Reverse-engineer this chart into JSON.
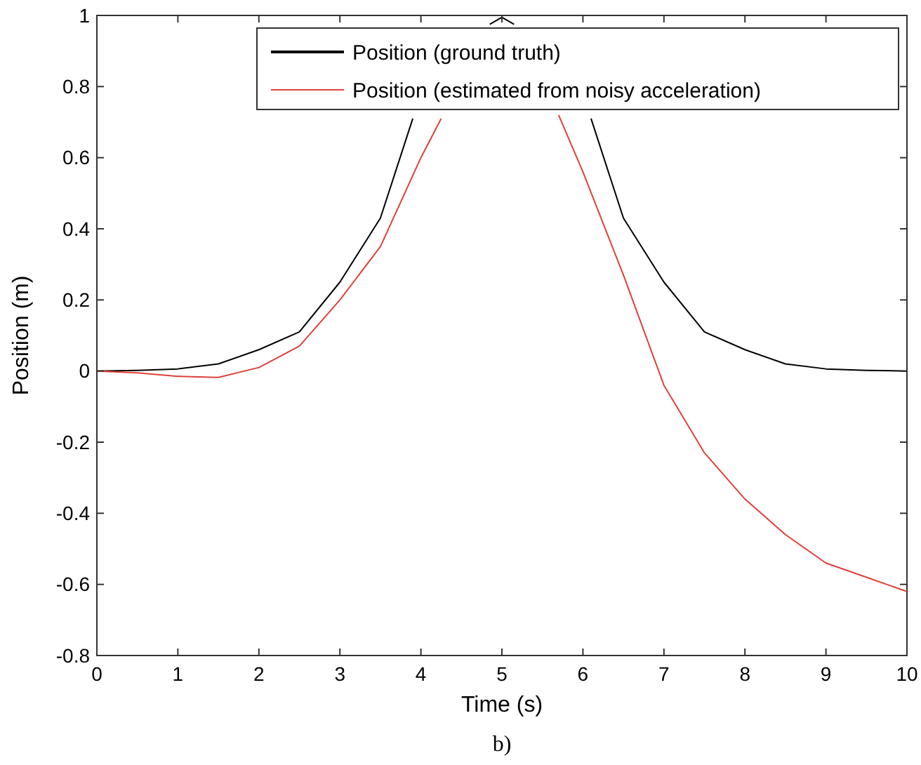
{
  "chart_data": {
    "type": "line",
    "xlabel": "Time (s)",
    "ylabel": "Position (m)",
    "xlim": [
      0,
      10
    ],
    "ylim": [
      -0.8,
      1
    ],
    "xticks": [
      0,
      1,
      2,
      3,
      4,
      5,
      6,
      7,
      8,
      9,
      10
    ],
    "yticks": [
      -0.8,
      -0.6,
      -0.4,
      -0.2,
      0,
      0.2,
      0.4,
      0.6,
      0.8,
      1
    ],
    "grid": false,
    "legend": "top right",
    "marker": "none",
    "line_style": "solid",
    "annotations": [
      "b)"
    ],
    "series": [
      {
        "name": "Position (ground truth)",
        "color": "#000000",
        "x": [
          0,
          0.5,
          1,
          1.5,
          2,
          2.5,
          3,
          3.5,
          3.9,
          4.5,
          4.85,
          5,
          5.15,
          5.5,
          6.1,
          6.5,
          7,
          7.5,
          8,
          8.5,
          9,
          9.5,
          10
        ],
        "values": [
          0,
          0.002,
          0.006,
          0.02,
          0.06,
          0.11,
          0.25,
          0.43,
          0.71,
          null,
          0.975,
          0.995,
          0.975,
          null,
          0.71,
          0.43,
          0.25,
          0.11,
          0.06,
          0.02,
          0.006,
          0.002,
          0
        ]
      },
      {
        "name": "Position (estimated from noisy acceleration)",
        "color": "#e0403a",
        "x": [
          0,
          0.5,
          1,
          1.5,
          2,
          2.5,
          3,
          3.5,
          4,
          4.25,
          4.5,
          5,
          5.5,
          5.7,
          6,
          6.5,
          7,
          7.5,
          8,
          8.5,
          9,
          9.5,
          10
        ],
        "values": [
          0,
          -0.005,
          -0.015,
          -0.018,
          0.01,
          0.07,
          0.2,
          0.35,
          0.6,
          0.71,
          null,
          null,
          null,
          0.72,
          0.56,
          0.27,
          -0.04,
          -0.23,
          -0.36,
          -0.46,
          -0.54,
          -0.58,
          -0.62
        ]
      }
    ]
  }
}
